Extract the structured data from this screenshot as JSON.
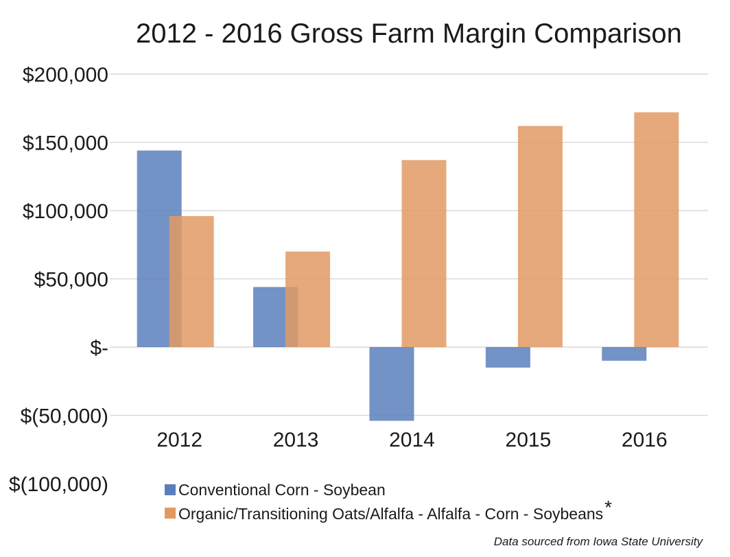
{
  "chart_data": {
    "type": "bar",
    "title": "2012 - 2016 Gross Farm Margin Comparison",
    "categories": [
      "2012",
      "2013",
      "2014",
      "2015",
      "2016"
    ],
    "series": [
      {
        "name": "Conventional Corn - Soybean",
        "values": [
          144000,
          44000,
          -54000,
          -15000,
          -10000
        ]
      },
      {
        "name": "Organic/Transitioning Oats/Alfalfa - Alfalfa - Corn - Soybeans",
        "values": [
          96000,
          70000,
          137000,
          162000,
          172000
        ]
      }
    ],
    "legend_asterisk": "*",
    "ylim": [
      -100000,
      200000
    ],
    "yticks": [
      {
        "value": 200000,
        "label": "$200,000"
      },
      {
        "value": 150000,
        "label": "$150,000"
      },
      {
        "value": 100000,
        "label": "$100,000"
      },
      {
        "value": 50000,
        "label": "$50,000"
      },
      {
        "value": 0,
        "label": "$-"
      },
      {
        "value": -50000,
        "label": "$(50,000)"
      },
      {
        "value": -100000,
        "label": "$(100,000)"
      }
    ],
    "grid": true,
    "legend_position": "bottom",
    "source_note": "Data sourced from Iowa State University"
  },
  "colors": {
    "series_1": "#5b7fbc",
    "series_2": "#e09a64"
  }
}
